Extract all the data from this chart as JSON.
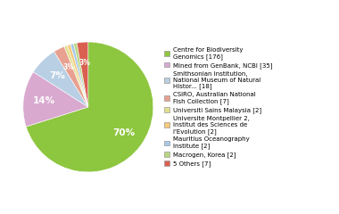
{
  "labels": [
    "Centre for Biodiversity\nGenomics [176]",
    "Mined from GenBank, NCBI [35]",
    "Smithsonian Institution,\nNational Museum of Natural\nHistor... [18]",
    "CSIRO, Australian National\nFish Collection [7]",
    "Universiti Sains Malaysia [2]",
    "Universite Montpellier 2,\nInstitut des Sciences de\nl'Evolution [2]",
    "Mauritius Oceanography\nInstitute [2]",
    "Macrogen, Korea [2]",
    "5 Others [7]"
  ],
  "values": [
    176,
    35,
    18,
    7,
    2,
    2,
    2,
    2,
    7
  ],
  "colors": [
    "#8dc63f",
    "#d9a9d0",
    "#b8cfe4",
    "#e8a090",
    "#e0e090",
    "#f5c97a",
    "#a8c8e8",
    "#b8d880",
    "#d96050"
  ],
  "background_color": "#ffffff"
}
